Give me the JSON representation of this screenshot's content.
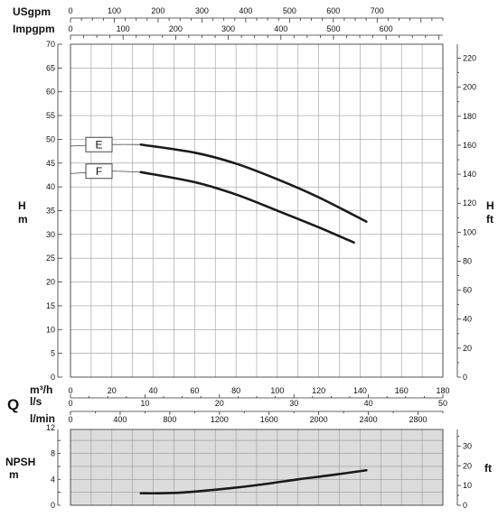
{
  "chart_data": [
    {
      "type": "line",
      "panel": "head",
      "axes": {
        "usgpm": {
          "label": "USgpm",
          "range": [
            0,
            850
          ],
          "ticks": [
            0,
            100,
            200,
            300,
            400,
            500,
            600,
            700
          ]
        },
        "impgpm": {
          "label": "Impgpm",
          "range": [
            0,
            708
          ],
          "ticks": [
            0,
            100,
            200,
            300,
            400,
            500,
            600
          ]
        },
        "m3h": {
          "label": "m³/h",
          "range": [
            0,
            180
          ],
          "ticks": [
            0,
            20,
            40,
            60,
            80,
            100,
            120,
            140,
            160,
            180
          ]
        },
        "ls": {
          "label": "l/s",
          "range": [
            0,
            50
          ],
          "ticks": [
            0,
            10,
            20,
            30,
            40,
            50
          ]
        },
        "lmin": {
          "label": "l/min",
          "range": [
            0,
            3000
          ],
          "ticks": [
            0,
            400,
            800,
            1200,
            1600,
            2000,
            2400,
            2800
          ]
        },
        "h_m": {
          "label_top": "H",
          "label_bottom": "m",
          "range": [
            0,
            70
          ],
          "ticks": [
            0,
            5,
            10,
            15,
            20,
            25,
            30,
            35,
            40,
            45,
            50,
            55,
            60,
            65,
            70
          ]
        },
        "h_ft": {
          "label_top": "H",
          "label_bottom": "ft",
          "range": [
            0,
            229.7
          ],
          "ticks": [
            0,
            20,
            40,
            60,
            80,
            100,
            120,
            140,
            160,
            180,
            200,
            220
          ]
        }
      },
      "q_label": "Q",
      "grid": true,
      "x_unit": "m³/h",
      "y_unit": "m",
      "series": [
        {
          "name": "E",
          "x": [
            0,
            20,
            34,
            60,
            80,
            100,
            120,
            143
          ],
          "y": [
            48.6,
            48.9,
            48.9,
            47.2,
            44.9,
            41.6,
            37.8,
            32.7
          ]
        },
        {
          "name": "F",
          "x": [
            0,
            20,
            34,
            60,
            80,
            100,
            120,
            137
          ],
          "y": [
            42.8,
            43.3,
            43.1,
            41.0,
            38.4,
            35.0,
            31.5,
            28.3
          ]
        }
      ]
    },
    {
      "type": "line",
      "panel": "npsh",
      "axes": {
        "npsh_m": {
          "label_top": "NPSH",
          "label_bottom": "m",
          "range": [
            0,
            11.7
          ],
          "ticks": [
            0,
            4,
            8,
            12
          ]
        },
        "npsh_ft": {
          "label": "ft",
          "range": [
            0,
            38.4
          ],
          "ticks": [
            0,
            10,
            20,
            30
          ]
        }
      },
      "grid": true,
      "x_unit": "m³/h",
      "y_unit": "m",
      "series": [
        {
          "name": "NPSH",
          "x": [
            34,
            50,
            70,
            90,
            110,
            125,
            143
          ],
          "y": [
            1.85,
            1.9,
            2.4,
            3.1,
            4.0,
            4.6,
            5.4
          ]
        }
      ]
    }
  ]
}
